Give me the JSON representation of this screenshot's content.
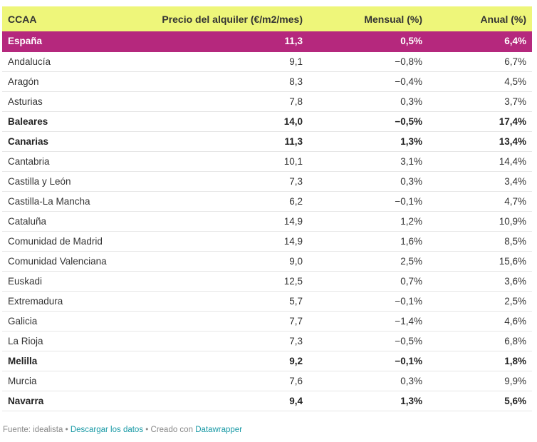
{
  "table": {
    "headers": [
      "CCAA",
      "Precio del alquiler (€/m2/mes)",
      "Mensual (%)",
      "Anual (%)"
    ],
    "rows": [
      {
        "ccaa": "España",
        "precio": "11,3",
        "mensual": "0,5%",
        "anual": "6,4%",
        "style": "highlight"
      },
      {
        "ccaa": "Andalucía",
        "precio": "9,1",
        "mensual": "−0,8%",
        "anual": "6,7%",
        "style": ""
      },
      {
        "ccaa": "Aragón",
        "precio": "8,3",
        "mensual": "−0,4%",
        "anual": "4,5%",
        "style": ""
      },
      {
        "ccaa": "Asturias",
        "precio": "7,8",
        "mensual": "0,3%",
        "anual": "3,7%",
        "style": ""
      },
      {
        "ccaa": "Baleares",
        "precio": "14,0",
        "mensual": "−0,5%",
        "anual": "17,4%",
        "style": "bold"
      },
      {
        "ccaa": "Canarias",
        "precio": "11,3",
        "mensual": "1,3%",
        "anual": "13,4%",
        "style": "bold"
      },
      {
        "ccaa": "Cantabria",
        "precio": "10,1",
        "mensual": "3,1%",
        "anual": "14,4%",
        "style": ""
      },
      {
        "ccaa": "Castilla y León",
        "precio": "7,3",
        "mensual": "0,3%",
        "anual": "3,4%",
        "style": ""
      },
      {
        "ccaa": "Castilla-La Mancha",
        "precio": "6,2",
        "mensual": "−0,1%",
        "anual": "4,7%",
        "style": ""
      },
      {
        "ccaa": "Cataluña",
        "precio": "14,9",
        "mensual": "1,2%",
        "anual": "10,9%",
        "style": ""
      },
      {
        "ccaa": "Comunidad de Madrid",
        "precio": "14,9",
        "mensual": "1,6%",
        "anual": "8,5%",
        "style": ""
      },
      {
        "ccaa": "Comunidad Valenciana",
        "precio": "9,0",
        "mensual": "2,5%",
        "anual": "15,6%",
        "style": ""
      },
      {
        "ccaa": "Euskadi",
        "precio": "12,5",
        "mensual": "0,7%",
        "anual": "3,6%",
        "style": ""
      },
      {
        "ccaa": "Extremadura",
        "precio": "5,7",
        "mensual": "−0,1%",
        "anual": "2,5%",
        "style": ""
      },
      {
        "ccaa": "Galicia",
        "precio": "7,7",
        "mensual": "−1,4%",
        "anual": "4,6%",
        "style": ""
      },
      {
        "ccaa": "La Rioja",
        "precio": "7,3",
        "mensual": "−0,5%",
        "anual": "6,8%",
        "style": ""
      },
      {
        "ccaa": "Melilla",
        "precio": "9,2",
        "mensual": "−0,1%",
        "anual": "1,8%",
        "style": "bold"
      },
      {
        "ccaa": "Murcia",
        "precio": "7,6",
        "mensual": "0,3%",
        "anual": "9,9%",
        "style": ""
      },
      {
        "ccaa": "Navarra",
        "precio": "9,4",
        "mensual": "1,3%",
        "anual": "5,6%",
        "style": "bold"
      }
    ]
  },
  "footer": {
    "source": "Fuente: idealista",
    "sep": " • ",
    "download_link": "Descargar los datos",
    "created_with": "Creado con",
    "datawrapper_link": "Datawrapper"
  },
  "colors": {
    "header_bg": "#eef67a",
    "highlight_bg": "#b5287d",
    "link": "#1a9aa6"
  }
}
